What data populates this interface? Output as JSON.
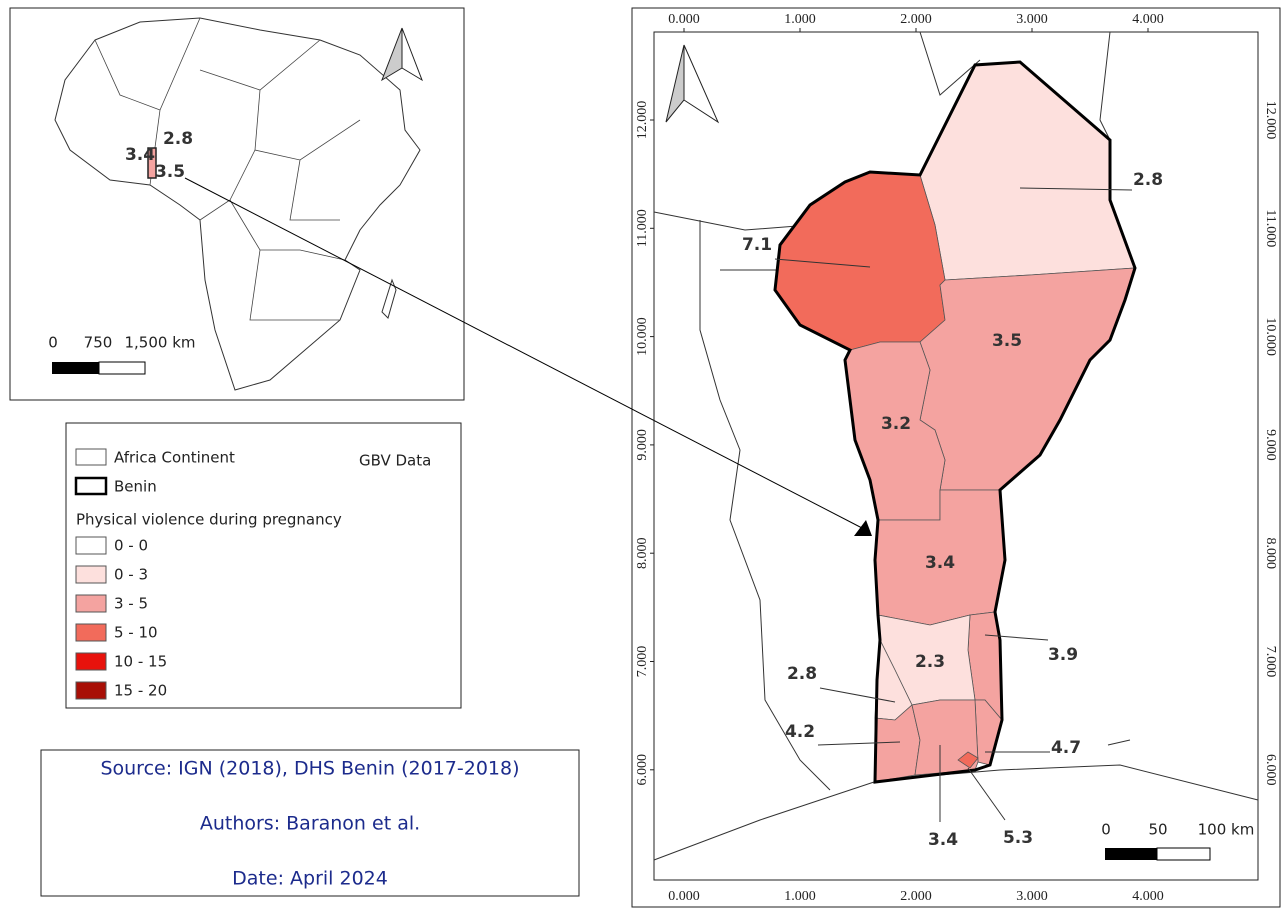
{
  "inset_map": {
    "labels": [
      2.8,
      3.4,
      3.5
    ],
    "scale": [
      0,
      750,
      "1,500 km"
    ]
  },
  "legend": {
    "items": [
      "Africa Continent",
      "Benin"
    ],
    "title": "GBV Data",
    "group_title": "Physical violence during pregnancy",
    "classes": [
      {
        "label": "0 - 0",
        "color": "#ffffff"
      },
      {
        "label": "0 - 3",
        "color": "#fde0dd"
      },
      {
        "label": "3 - 5",
        "color": "#f4a3a0"
      },
      {
        "label": "5 - 10",
        "color": "#f26b5b"
      },
      {
        "label": "10 - 15",
        "color": "#e8120c"
      },
      {
        "label": "15 - 20",
        "color": "#a80f06"
      }
    ]
  },
  "credits": [
    "Source: IGN (2018), DHS Benin  (2017-2018)",
    "Authors: Baranon et al.",
    "Date: April 2024"
  ],
  "main_map": {
    "x_ticks": [
      {
        "value": 0,
        "label": "0.000"
      },
      {
        "value": 1,
        "label": "1.000"
      },
      {
        "value": 2,
        "label": "2.000"
      },
      {
        "value": 3,
        "label": "3.000"
      },
      {
        "value": 4,
        "label": "4.000"
      }
    ],
    "y_ticks": [
      {
        "value": 6,
        "label": "6.000"
      },
      {
        "value": 7,
        "label": "7.000"
      },
      {
        "value": 8,
        "label": "8.000"
      },
      {
        "value": 9,
        "label": "9.000"
      },
      {
        "value": 10,
        "label": "10.000"
      },
      {
        "value": 11,
        "label": "11.000"
      },
      {
        "value": 12,
        "label": "12.000"
      }
    ],
    "regions": [
      {
        "value": 2.8,
        "color": "#fde0dd"
      },
      {
        "value": 7.1,
        "color": "#f26b5b"
      },
      {
        "value": 3.5,
        "color": "#f4a3a0"
      },
      {
        "value": 3.2,
        "color": "#f4a3a0"
      },
      {
        "value": 3.4,
        "color": "#f4a3a0"
      },
      {
        "value": 3.9,
        "color": "#f4a3a0"
      },
      {
        "value": 2.3,
        "color": "#fde0dd"
      },
      {
        "value": 2.8,
        "color": "#fde0dd"
      },
      {
        "value": 4.2,
        "color": "#f4a3a0"
      },
      {
        "value": 4.7,
        "color": "#f4a3a0"
      },
      {
        "value": 3.4,
        "color": "#f4a3a0"
      },
      {
        "value": 5.3,
        "color": "#f26b5b"
      }
    ],
    "scale": [
      0,
      50,
      "100 km"
    ]
  }
}
